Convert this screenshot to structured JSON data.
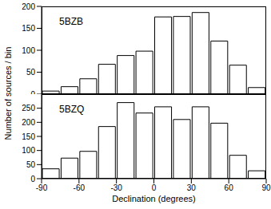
{
  "chart_data": [
    {
      "type": "histogram",
      "annotation": "5BZB",
      "ylabel": "Number of sources / bin",
      "bins": [
        -90,
        -75,
        -60,
        -45,
        -30,
        -15,
        0,
        15,
        30,
        45,
        60,
        75,
        90
      ],
      "values": [
        7,
        17,
        35,
        68,
        88,
        98,
        176,
        177,
        186,
        121,
        66,
        15
      ],
      "color": "#ffffff",
      "xlim": [
        -90,
        90
      ],
      "xticks": [
        -90,
        -60,
        -30,
        0,
        30,
        60,
        90
      ],
      "ylim": [
        0,
        200
      ],
      "yticks": [
        0,
        50,
        100,
        150,
        200
      ],
      "tick_labels": "y"
    },
    {
      "type": "histogram",
      "annotation": "5BZQ",
      "xlabel": "Declination (degrees)",
      "bins": [
        -90,
        -75,
        -60,
        -45,
        -30,
        -15,
        0,
        15,
        30,
        45,
        60,
        75,
        90
      ],
      "values": [
        35,
        73,
        97,
        185,
        270,
        233,
        255,
        210,
        255,
        197,
        83,
        28
      ],
      "color": "#ffffff",
      "xlim": [
        -90,
        90
      ],
      "xticks": [
        -90,
        -60,
        -30,
        0,
        30,
        60,
        90
      ],
      "ylim": [
        0,
        300
      ],
      "yticks": [
        0,
        50,
        100,
        150,
        200,
        250
      ]
    }
  ]
}
